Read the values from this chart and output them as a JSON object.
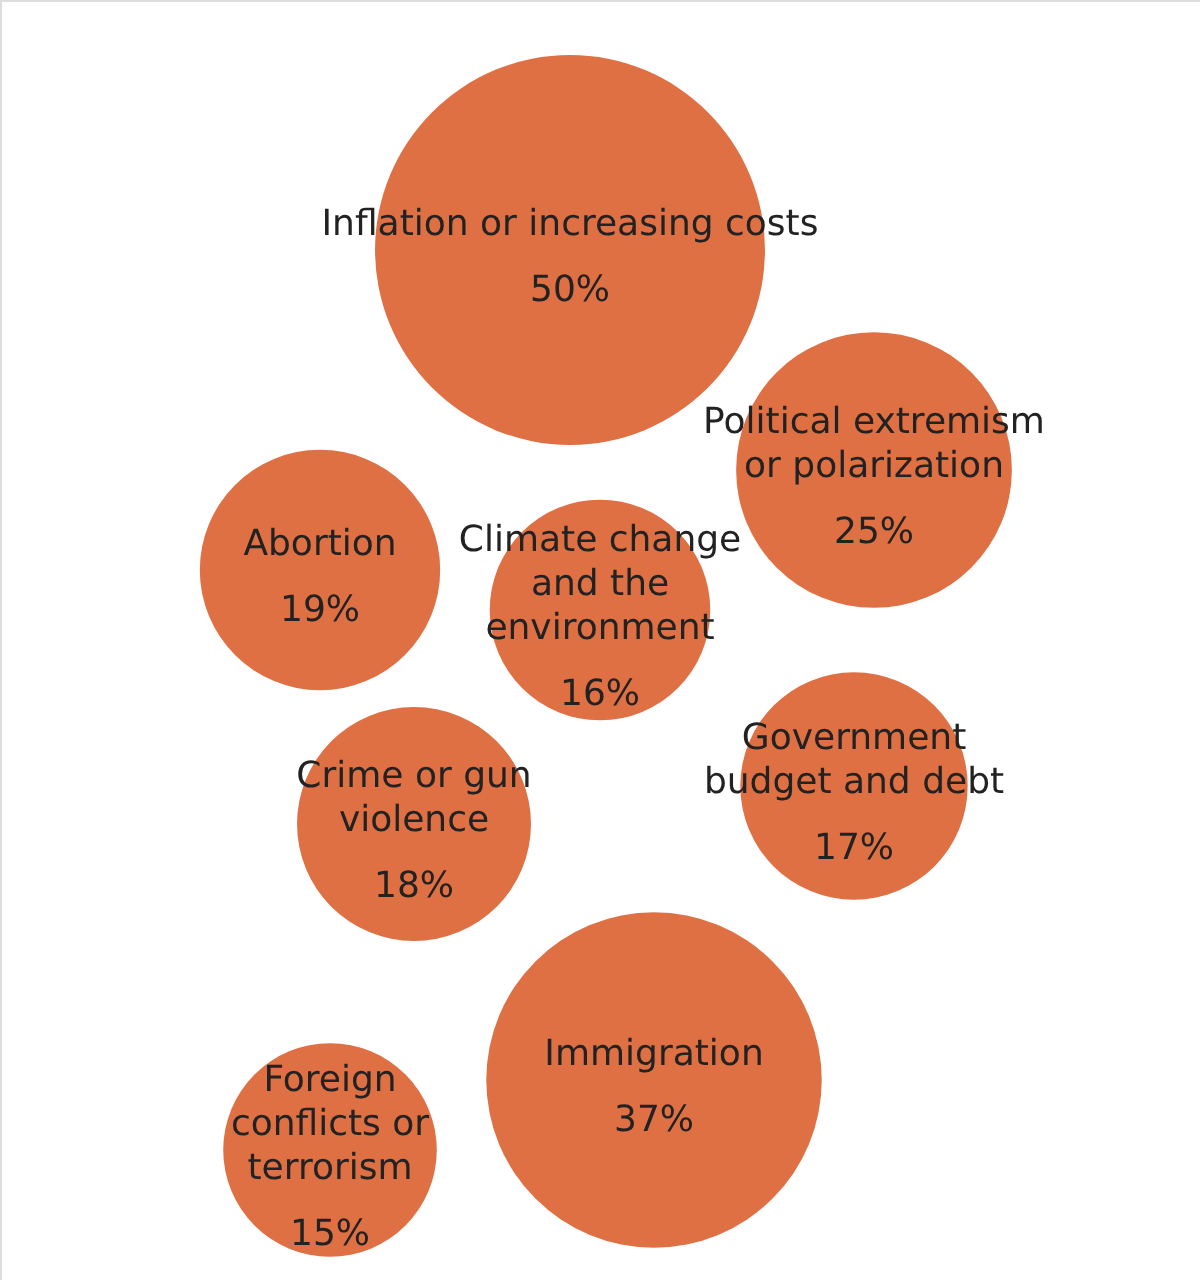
{
  "chart_data": {
    "type": "other",
    "categories": [
      "Inflation or increasing costs",
      "Political extremism\nor polarization",
      "Abortion",
      "Climate change\nand the\nenvironment",
      "Government\nbudget and debt",
      "Crime or gun\nviolence",
      "Immigration",
      "Foreign\nconflicts or\nterrorism"
    ],
    "values": [
      50,
      25,
      19,
      16,
      17,
      18,
      37,
      15
    ],
    "value_labels": [
      "50%",
      "25%",
      "19%",
      "16%",
      "17%",
      "18%",
      "37%",
      "15%"
    ],
    "color": "#df7044"
  }
}
